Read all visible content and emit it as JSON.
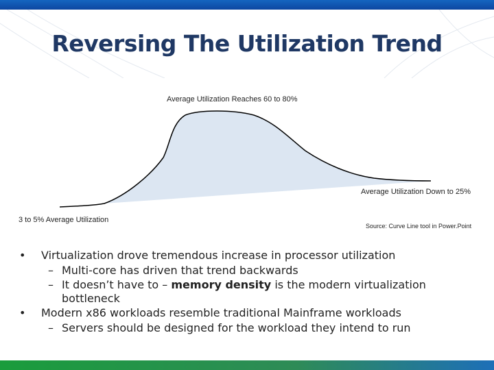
{
  "slide": {
    "title": "Reversing The Utilization Trend"
  },
  "chart": {
    "peak_label": "Average Utilization Reaches 60 to 80%",
    "down_label": "Average Utilization Down to 25%",
    "low_label": "3 to 5% Average Utilization",
    "source_label": "Source: Curve Line tool in Power.Point",
    "fill_color": "#dce6f2",
    "line_color": "#000000"
  },
  "bullets": [
    {
      "text": "Virtualization drove tremendous increase in processor utilization",
      "sub": [
        {
          "dash": "–",
          "text": "Multi-core has driven that trend backwards"
        },
        {
          "dash": "–",
          "pre": "It doesn’t have to – ",
          "strong": "memory density",
          "post": " is the modern virtualization bottleneck"
        }
      ]
    },
    {
      "text": "Modern x86 workloads resemble traditional Mainframe workloads",
      "sub": [
        {
          "dash": "–",
          "text": "Servers should be designed for the workload they intend to run"
        }
      ]
    }
  ],
  "bullet_marker": "•"
}
